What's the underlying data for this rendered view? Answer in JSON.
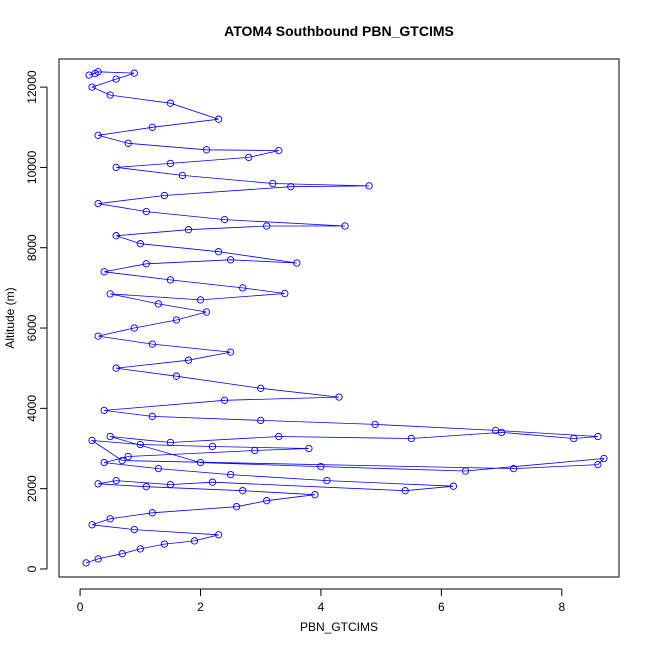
{
  "chart_data": {
    "type": "scatter",
    "title": "ATOM4 Southbound PBN_GTCIMS",
    "xlabel": "PBN_GTCIMS",
    "ylabel": "Altitude (m)",
    "xlim": [
      -0.35,
      8.95
    ],
    "ylim": [
      -200,
      12700
    ],
    "x_ticks": [
      0,
      2,
      4,
      6,
      8
    ],
    "y_ticks": [
      0,
      2000,
      4000,
      6000,
      8000,
      10000,
      12000
    ],
    "x_tick_labels": [
      "0",
      "2",
      "4",
      "6",
      "8"
    ],
    "y_tick_labels": [
      "0",
      "2000",
      "4000",
      "6000",
      "8000",
      "10000",
      "12000"
    ],
    "grid": false,
    "marker": "open-circle",
    "connected": true,
    "color": "#0000ff",
    "series": [
      {
        "x": [
          0.1,
          0.3,
          0.7,
          1.0,
          1.4,
          1.9,
          2.3,
          0.9,
          0.2,
          0.5,
          1.2,
          2.6,
          3.1,
          3.9,
          2.7,
          1.1,
          0.3,
          0.6,
          1.5,
          2.2,
          5.4,
          6.2,
          4.1,
          2.5,
          1.3,
          0.4,
          0.8,
          2.9,
          3.8,
          2.2,
          1.0,
          0.2,
          0.7,
          7.2,
          8.6,
          8.7,
          6.4,
          4.0,
          2.0,
          0.5,
          1.5,
          3.3,
          5.5,
          7.0,
          8.2,
          8.6,
          6.9,
          4.9,
          3.0,
          1.2,
          0.4,
          2.4,
          4.3,
          3.0,
          1.6,
          0.6,
          1.8,
          2.5,
          1.2,
          0.3,
          0.9,
          1.6,
          2.1,
          1.3,
          0.5,
          2.0,
          3.4,
          2.7,
          1.5,
          0.4,
          1.1,
          2.5,
          3.6,
          2.3,
          1.0,
          0.6,
          1.8,
          3.1,
          4.4,
          2.4,
          1.1,
          0.3,
          1.4,
          3.5,
          4.8,
          3.2,
          1.7,
          0.6,
          1.5,
          2.8,
          3.3,
          2.1,
          0.8,
          0.3,
          1.2,
          2.3,
          1.5,
          0.5,
          0.2,
          0.6,
          0.9,
          0.3,
          0.15,
          0.25
        ],
        "y": [
          150,
          250,
          380,
          500,
          620,
          700,
          850,
          980,
          1100,
          1250,
          1400,
          1550,
          1700,
          1850,
          1950,
          2050,
          2120,
          2200,
          2100,
          2160,
          1950,
          2060,
          2200,
          2350,
          2500,
          2650,
          2800,
          2950,
          3000,
          3050,
          3100,
          3200,
          2700,
          2500,
          2600,
          2750,
          2440,
          2550,
          2650,
          3300,
          3150,
          3300,
          3250,
          3400,
          3250,
          3300,
          3450,
          3600,
          3700,
          3800,
          3950,
          4200,
          4280,
          4500,
          4800,
          5000,
          5200,
          5400,
          5600,
          5800,
          6000,
          6200,
          6400,
          6600,
          6850,
          6700,
          6860,
          7000,
          7200,
          7400,
          7600,
          7700,
          7620,
          7900,
          8100,
          8300,
          8450,
          8540,
          8540,
          8700,
          8900,
          9100,
          9300,
          9520,
          9540,
          9600,
          9800,
          10000,
          10100,
          10250,
          10420,
          10440,
          10600,
          10800,
          11000,
          11200,
          11600,
          11800,
          12000,
          12200,
          12350,
          12380,
          12300,
          12340
        ]
      }
    ]
  }
}
